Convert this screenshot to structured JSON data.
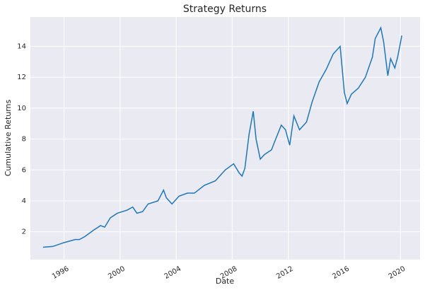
{
  "chart_data": {
    "type": "line",
    "title": "Strategy Returns",
    "x_label": "Date",
    "y_label": "Cumulative Returns",
    "x": [
      1994.5,
      1995.2,
      1996.0,
      1996.8,
      1997.1,
      1997.5,
      1998.1,
      1998.6,
      1998.9,
      1999.3,
      1999.8,
      2000.5,
      2000.9,
      2001.2,
      2001.6,
      2002.0,
      2002.7,
      2003.1,
      2003.3,
      2003.7,
      2004.2,
      2004.8,
      2005.3,
      2006.0,
      2006.8,
      2007.5,
      2008.1,
      2008.5,
      2008.7,
      2008.9,
      2009.2,
      2009.5,
      2009.7,
      2010.0,
      2010.3,
      2010.8,
      2011.1,
      2011.5,
      2011.8,
      2012.1,
      2012.4,
      2012.8,
      2013.3,
      2013.7,
      2014.2,
      2014.7,
      2015.2,
      2015.7,
      2016.0,
      2016.2,
      2016.5,
      2017.0,
      2017.5,
      2018.0,
      2018.2,
      2018.6,
      2018.8,
      2019.1,
      2019.3,
      2019.6,
      2019.8,
      2020.1
    ],
    "values": [
      1.0,
      1.05,
      1.3,
      1.5,
      1.5,
      1.7,
      2.1,
      2.4,
      2.3,
      2.9,
      3.2,
      3.4,
      3.6,
      3.2,
      3.3,
      3.8,
      4.0,
      4.7,
      4.2,
      3.8,
      4.3,
      4.5,
      4.5,
      5.0,
      5.3,
      6.0,
      6.4,
      5.8,
      5.6,
      6.1,
      8.3,
      9.8,
      8.0,
      6.7,
      7.0,
      7.3,
      8.0,
      8.9,
      8.6,
      7.6,
      9.5,
      8.6,
      9.1,
      10.4,
      11.7,
      12.5,
      13.5,
      14.0,
      11.0,
      10.3,
      10.9,
      11.3,
      12.0,
      13.3,
      14.5,
      15.2,
      14.3,
      12.1,
      13.2,
      12.6,
      13.3,
      14.7
    ],
    "color": "#1f77b4",
    "xlim": [
      1993.6,
      2021.4
    ],
    "xticks": [
      1996,
      2000,
      2004,
      2008,
      2012,
      2016,
      2020
    ],
    "ylim": [
      0.2,
      15.9
    ],
    "yticks": [
      2,
      4,
      6,
      8,
      10,
      12,
      14
    ],
    "grid": true
  }
}
